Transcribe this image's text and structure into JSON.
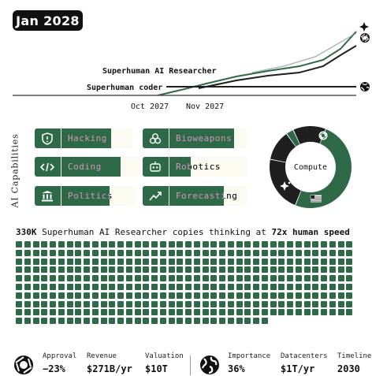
{
  "header": {
    "date": "Jan 2028"
  },
  "timeline": {
    "milestones": [
      "Superhuman AI Researcher",
      "Superhuman coder"
    ],
    "x_ticks": [
      "Oct 2027",
      "Nov 2027"
    ],
    "series_icons": [
      "openai-logo",
      "globe-icon"
    ]
  },
  "capabilities": {
    "title": "AI Capabilities",
    "items": [
      {
        "label": "Hacking",
        "icon": "shield-icon",
        "level": 0.78
      },
      {
        "label": "Coding",
        "icon": "code-icon",
        "level": 0.81
      },
      {
        "label": "Politics",
        "icon": "government-icon",
        "level": 0.74
      },
      {
        "label": "Bioweapons",
        "icon": "biohazard-icon",
        "level": 0.88
      },
      {
        "label": "Robotics",
        "icon": "robot-icon",
        "level": 0.46
      },
      {
        "label": "Forecasting",
        "icon": "trend-chart-icon",
        "level": 0.78
      }
    ]
  },
  "compute": {
    "label": "Compute",
    "segments": [
      {
        "name": "openai-logo",
        "share": 0.5,
        "color": "#2e6a48"
      },
      {
        "name": "us-flag-icon",
        "share": 0.22,
        "color": "#1f1f1f"
      },
      {
        "name": "sparkle-icon",
        "share": 0.12,
        "color": "#1f1f1f"
      },
      {
        "name": "other",
        "share": 0.03,
        "color": "#2e6a48"
      },
      {
        "name": "other",
        "share": 0.13,
        "color": "#1f1f1f"
      }
    ]
  },
  "copies": {
    "count": "330K",
    "subject": "Superhuman AI Researcher",
    "middle": "copies thinking at",
    "speed": "72x human speed",
    "squares_total": 390,
    "columns": 40,
    "full_rows": 9,
    "color": "#2e6a48"
  },
  "stats": {
    "left_icon": "openai-logo",
    "approval": {
      "label": "Approval",
      "value": "−23%"
    },
    "revenue": {
      "label": "Revenue",
      "value": "$271B/yr"
    },
    "valuation": {
      "label": "Valuation",
      "value": "$10T"
    },
    "right_icon": "globe-icon",
    "importance": {
      "label": "Importance",
      "value": "36%"
    },
    "datacenters": {
      "label": "Datacenters",
      "value": "$1T/yr"
    },
    "timeline": {
      "label": "Timeline",
      "value": "2030"
    }
  },
  "colors": {
    "accent": "#2e6a48",
    "dark": "#111111",
    "cream": "#fbfbf1"
  }
}
